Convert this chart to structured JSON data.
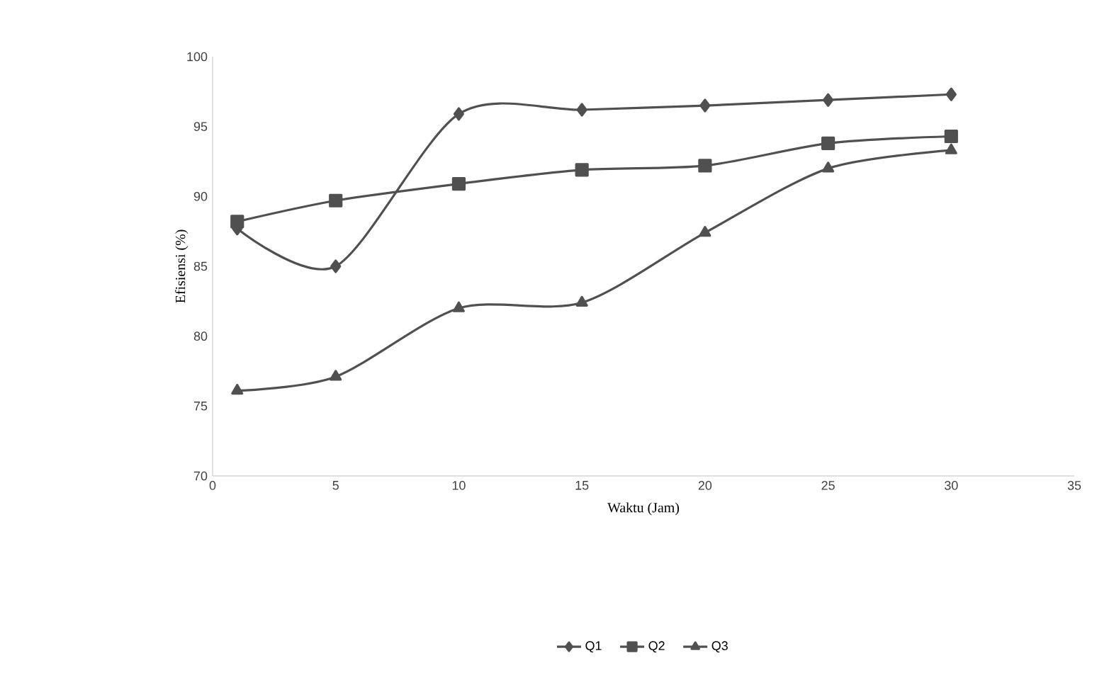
{
  "chart_data": {
    "type": "line",
    "xlabel": "Waktu (Jam)",
    "ylabel": "Efisiensi (%)",
    "x": [
      1,
      5,
      10,
      15,
      20,
      25,
      30
    ],
    "series": [
      {
        "name": "Q1",
        "color": "#505050",
        "marker": "diamond",
        "values": [
          87.7,
          85.0,
          95.9,
          96.2,
          96.5,
          96.9,
          97.3
        ]
      },
      {
        "name": "Q2",
        "color": "#505050",
        "marker": "square",
        "values": [
          88.2,
          89.7,
          90.9,
          91.9,
          92.2,
          93.8,
          94.3
        ]
      },
      {
        "name": "Q3",
        "color": "#505050",
        "marker": "triangle",
        "values": [
          76.1,
          77.1,
          82.0,
          82.4,
          87.4,
          92.0,
          93.3
        ]
      }
    ],
    "xlim": [
      0,
      35
    ],
    "ylim": [
      70,
      100
    ],
    "xticks": [
      0,
      5,
      10,
      15,
      20,
      25,
      30,
      35
    ],
    "yticks": [
      70,
      75,
      80,
      85,
      90,
      95,
      100
    ],
    "grid": false,
    "legend": "bottom",
    "line_style": "solid"
  }
}
